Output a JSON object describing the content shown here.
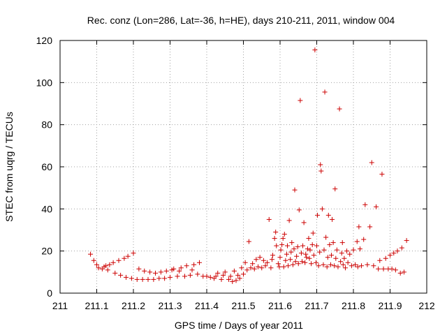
{
  "chart_data": {
    "type": "scatter",
    "title": "Rec. conz (Lon=286, Lat=-36, h=HE), days 210-211, 2011, window 004",
    "xlabel": "GPS time / Days of year 2011",
    "ylabel": "STEC from uqrg / TECUs",
    "xlim": [
      211,
      212
    ],
    "ylim": [
      0,
      120
    ],
    "xticks": [
      "211",
      "211.1",
      "211.2",
      "211.3",
      "211.4",
      "211.5",
      "211.6",
      "211.7",
      "211.8",
      "211.9",
      "212"
    ],
    "yticks": [
      "0",
      "20",
      "40",
      "60",
      "80",
      "100",
      "120"
    ],
    "grid": true,
    "marker": "plus",
    "color": "#cc0000",
    "points": [
      [
        211.083,
        18.5
      ],
      [
        211.092,
        15.5
      ],
      [
        211.1,
        13.5
      ],
      [
        211.105,
        12.0
      ],
      [
        211.115,
        11.5
      ],
      [
        211.12,
        12.5
      ],
      [
        211.125,
        13.0
      ],
      [
        211.13,
        11.0
      ],
      [
        211.135,
        13.5
      ],
      [
        211.145,
        14.5
      ],
      [
        211.15,
        9.5
      ],
      [
        211.16,
        15.5
      ],
      [
        211.165,
        8.5
      ],
      [
        211.175,
        16.5
      ],
      [
        211.18,
        7.5
      ],
      [
        211.185,
        17.5
      ],
      [
        211.195,
        7.0
      ],
      [
        211.2,
        19.0
      ],
      [
        211.21,
        6.5
      ],
      [
        211.215,
        11.5
      ],
      [
        211.225,
        6.5
      ],
      [
        211.23,
        10.5
      ],
      [
        211.24,
        6.5
      ],
      [
        211.245,
        10.0
      ],
      [
        211.255,
        6.5
      ],
      [
        211.26,
        9.5
      ],
      [
        211.27,
        7.0
      ],
      [
        211.275,
        10.0
      ],
      [
        211.285,
        7.0
      ],
      [
        211.29,
        10.5
      ],
      [
        211.3,
        7.5
      ],
      [
        211.305,
        11.0
      ],
      [
        211.31,
        11.5
      ],
      [
        211.32,
        8.0
      ],
      [
        211.325,
        10.5
      ],
      [
        211.33,
        12.0
      ],
      [
        211.34,
        8.0
      ],
      [
        211.345,
        13.0
      ],
      [
        211.355,
        8.5
      ],
      [
        211.36,
        11.0
      ],
      [
        211.365,
        13.5
      ],
      [
        211.375,
        9.0
      ],
      [
        211.38,
        14.5
      ],
      [
        211.39,
        8.0
      ],
      [
        211.4,
        8.0
      ],
      [
        211.41,
        7.5
      ],
      [
        211.42,
        7.0
      ],
      [
        211.425,
        8.0
      ],
      [
        211.43,
        9.5
      ],
      [
        211.44,
        6.5
      ],
      [
        211.445,
        8.5
      ],
      [
        211.45,
        10.0
      ],
      [
        211.46,
        6.5
      ],
      [
        211.465,
        8.0
      ],
      [
        211.47,
        5.5
      ],
      [
        211.475,
        10.5
      ],
      [
        211.48,
        6.0
      ],
      [
        211.485,
        8.5
      ],
      [
        211.49,
        7.0
      ],
      [
        211.495,
        12.0
      ],
      [
        211.5,
        9.0
      ],
      [
        211.505,
        14.5
      ],
      [
        211.51,
        11.0
      ],
      [
        211.515,
        24.5
      ],
      [
        211.52,
        12.0
      ],
      [
        211.525,
        14.0
      ],
      [
        211.53,
        11.5
      ],
      [
        211.535,
        16.0
      ],
      [
        211.54,
        12.5
      ],
      [
        211.545,
        17.0
      ],
      [
        211.55,
        12.0
      ],
      [
        211.555,
        15.5
      ],
      [
        211.56,
        13.0
      ],
      [
        211.565,
        14.5
      ],
      [
        211.57,
        35.0
      ],
      [
        211.575,
        12.0
      ],
      [
        211.578,
        16.0
      ],
      [
        211.58,
        18.0
      ],
      [
        211.585,
        26.0
      ],
      [
        211.588,
        29.0
      ],
      [
        211.59,
        22.5
      ],
      [
        211.595,
        14.0
      ],
      [
        211.598,
        12.5
      ],
      [
        211.6,
        17.0
      ],
      [
        211.602,
        20.5
      ],
      [
        211.605,
        23.0
      ],
      [
        211.608,
        26.0
      ],
      [
        211.61,
        12.5
      ],
      [
        211.612,
        28.0
      ],
      [
        211.615,
        15.5
      ],
      [
        211.618,
        18.5
      ],
      [
        211.62,
        22.5
      ],
      [
        211.622,
        13.0
      ],
      [
        211.625,
        34.5
      ],
      [
        211.628,
        16.0
      ],
      [
        211.63,
        19.5
      ],
      [
        211.632,
        24.0
      ],
      [
        211.635,
        13.5
      ],
      [
        211.638,
        21.0
      ],
      [
        211.64,
        49.0
      ],
      [
        211.642,
        15.0
      ],
      [
        211.645,
        17.5
      ],
      [
        211.648,
        22.0
      ],
      [
        211.65,
        14.0
      ],
      [
        211.652,
        39.5
      ],
      [
        211.655,
        91.5
      ],
      [
        211.658,
        19.0
      ],
      [
        211.66,
        15.0
      ],
      [
        211.662,
        22.5
      ],
      [
        211.665,
        33.5
      ],
      [
        211.668,
        14.5
      ],
      [
        211.67,
        18.5
      ],
      [
        211.672,
        17.0
      ],
      [
        211.675,
        21.0
      ],
      [
        211.678,
        26.0
      ],
      [
        211.68,
        16.5
      ],
      [
        211.682,
        20.5
      ],
      [
        211.685,
        14.0
      ],
      [
        211.688,
        23.0
      ],
      [
        211.69,
        28.5
      ],
      [
        211.692,
        18.0
      ],
      [
        211.695,
        115.5
      ],
      [
        211.698,
        14.5
      ],
      [
        211.7,
        22.5
      ],
      [
        211.702,
        37.0
      ],
      [
        211.705,
        13.0
      ],
      [
        211.708,
        19.5
      ],
      [
        211.71,
        61.0
      ],
      [
        211.712,
        58.0
      ],
      [
        211.715,
        40.0
      ],
      [
        211.718,
        13.5
      ],
      [
        211.72,
        20.5
      ],
      [
        211.722,
        95.5
      ],
      [
        211.725,
        26.5
      ],
      [
        211.728,
        12.5
      ],
      [
        211.73,
        17.0
      ],
      [
        211.732,
        37.0
      ],
      [
        211.735,
        23.0
      ],
      [
        211.738,
        13.5
      ],
      [
        211.74,
        18.0
      ],
      [
        211.742,
        35.0
      ],
      [
        211.745,
        24.0
      ],
      [
        211.748,
        13.0
      ],
      [
        211.75,
        49.5
      ],
      [
        211.752,
        16.5
      ],
      [
        211.755,
        20.5
      ],
      [
        211.758,
        12.5
      ],
      [
        211.762,
        87.5
      ],
      [
        211.765,
        15.0
      ],
      [
        211.768,
        19.0
      ],
      [
        211.77,
        24.0
      ],
      [
        211.772,
        13.5
      ],
      [
        211.775,
        16.5
      ],
      [
        211.778,
        12.0
      ],
      [
        211.782,
        20.0
      ],
      [
        211.785,
        14.5
      ],
      [
        211.79,
        18.5
      ],
      [
        211.795,
        13.0
      ],
      [
        211.8,
        20.5
      ],
      [
        211.805,
        13.5
      ],
      [
        211.81,
        24.5
      ],
      [
        211.812,
        12.5
      ],
      [
        211.815,
        31.5
      ],
      [
        211.818,
        21.0
      ],
      [
        211.822,
        13.0
      ],
      [
        211.828,
        25.5
      ],
      [
        211.832,
        42.0
      ],
      [
        211.838,
        13.5
      ],
      [
        211.845,
        31.5
      ],
      [
        211.85,
        62.0
      ],
      [
        211.855,
        13.0
      ],
      [
        211.862,
        41.0
      ],
      [
        211.868,
        11.5
      ],
      [
        211.872,
        15.5
      ],
      [
        211.878,
        56.5
      ],
      [
        211.882,
        11.5
      ],
      [
        211.888,
        16.5
      ],
      [
        211.895,
        11.5
      ],
      [
        211.9,
        18.0
      ],
      [
        211.905,
        11.5
      ],
      [
        211.91,
        19.0
      ],
      [
        211.915,
        11.0
      ],
      [
        211.92,
        20.0
      ],
      [
        211.928,
        9.5
      ],
      [
        211.932,
        21.5
      ],
      [
        211.938,
        10.0
      ],
      [
        211.945,
        25.0
      ]
    ]
  }
}
